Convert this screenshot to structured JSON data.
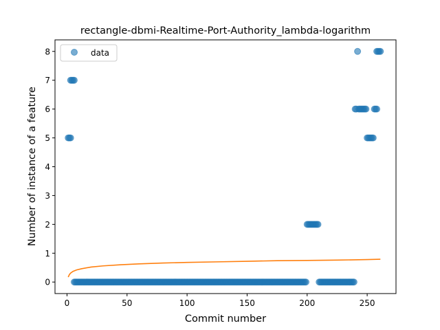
{
  "chart_data": {
    "type": "scatter",
    "title": "rectangle-dbmi-Realtime-Port-Authority_lambda-logarithm",
    "xlabel": "Commit number",
    "ylabel": "Number of instance of a feature",
    "xlim": [
      -10,
      274
    ],
    "ylim": [
      -0.4,
      8.4
    ],
    "xticks": [
      0,
      50,
      100,
      150,
      200,
      250
    ],
    "yticks": [
      0,
      1,
      2,
      3,
      4,
      5,
      6,
      7,
      8
    ],
    "grid": false,
    "legend": {
      "entries": [
        "data"
      ],
      "placement": "upper-left"
    },
    "colors": {
      "data": "#1f77b4",
      "fit": "#ff7f0e"
    },
    "series": [
      {
        "name": "data",
        "kind": "points",
        "segments": [
          {
            "x_from": 1,
            "x_to": 3,
            "y": 5
          },
          {
            "x_from": 3,
            "x_to": 6,
            "y": 7
          },
          {
            "x_from": 6,
            "x_to": 199,
            "y": 0
          },
          {
            "x_from": 200,
            "x_to": 209,
            "y": 2
          },
          {
            "x_from": 210,
            "x_to": 239,
            "y": 0
          },
          {
            "x_from": 240,
            "x_to": 241,
            "y": 6
          },
          {
            "x_from": 242,
            "x_to": 242,
            "y": 8
          },
          {
            "x_from": 243,
            "x_to": 249,
            "y": 6
          },
          {
            "x_from": 250,
            "x_to": 255,
            "y": 5
          },
          {
            "x_from": 256,
            "x_to": 258,
            "y": 6
          },
          {
            "x_from": 258,
            "x_to": 261,
            "y": 8
          }
        ]
      },
      {
        "kind": "line",
        "x": [
          1,
          2,
          3,
          5,
          8,
          12,
          20,
          30,
          45,
          60,
          80,
          100,
          125,
          150,
          175,
          200,
          225,
          250,
          261
        ],
        "y": [
          0.17,
          0.26,
          0.31,
          0.37,
          0.42,
          0.46,
          0.52,
          0.56,
          0.6,
          0.63,
          0.66,
          0.68,
          0.7,
          0.72,
          0.74,
          0.75,
          0.76,
          0.78,
          0.79
        ]
      }
    ]
  }
}
